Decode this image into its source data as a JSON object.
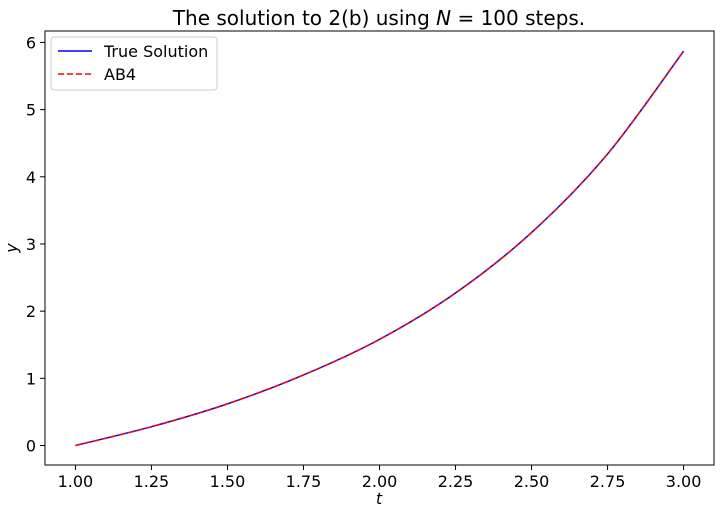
{
  "chart_data": {
    "type": "line",
    "title": {
      "prefix": "The solution to 2(b) using ",
      "math_var": "N",
      "math_rest": " = 100",
      "suffix": " steps."
    },
    "xlabel": "t",
    "ylabel": "y",
    "xlim": [
      0.9,
      3.1
    ],
    "ylim": [
      -0.29,
      6.17
    ],
    "xticks": [
      1.0,
      1.25,
      1.5,
      1.75,
      2.0,
      2.25,
      2.5,
      2.75,
      3.0
    ],
    "xtick_labels": [
      "1.00",
      "1.25",
      "1.50",
      "1.75",
      "2.00",
      "2.25",
      "2.50",
      "2.75",
      "3.00"
    ],
    "yticks": [
      0,
      1,
      2,
      3,
      4,
      5,
      6
    ],
    "ytick_labels": [
      "0",
      "1",
      "2",
      "3",
      "4",
      "5",
      "6"
    ],
    "legend_position": "top-left",
    "grid": false,
    "series": [
      {
        "name": "True Solution",
        "color": "#0000ff",
        "style": "solid",
        "x": [
          1.0,
          1.25,
          1.5,
          1.75,
          2.0,
          2.25,
          2.5,
          2.75,
          3.0
        ],
        "y": [
          0.0,
          0.28,
          0.62,
          1.05,
          1.58,
          2.27,
          3.17,
          4.34,
          5.87
        ]
      },
      {
        "name": "AB4",
        "color": "#ff0000",
        "style": "dashed",
        "x": [
          1.0,
          1.25,
          1.5,
          1.75,
          2.0,
          2.25,
          2.5,
          2.75,
          3.0
        ],
        "y": [
          0.0,
          0.28,
          0.62,
          1.05,
          1.58,
          2.27,
          3.17,
          4.34,
          5.87
        ]
      }
    ]
  }
}
